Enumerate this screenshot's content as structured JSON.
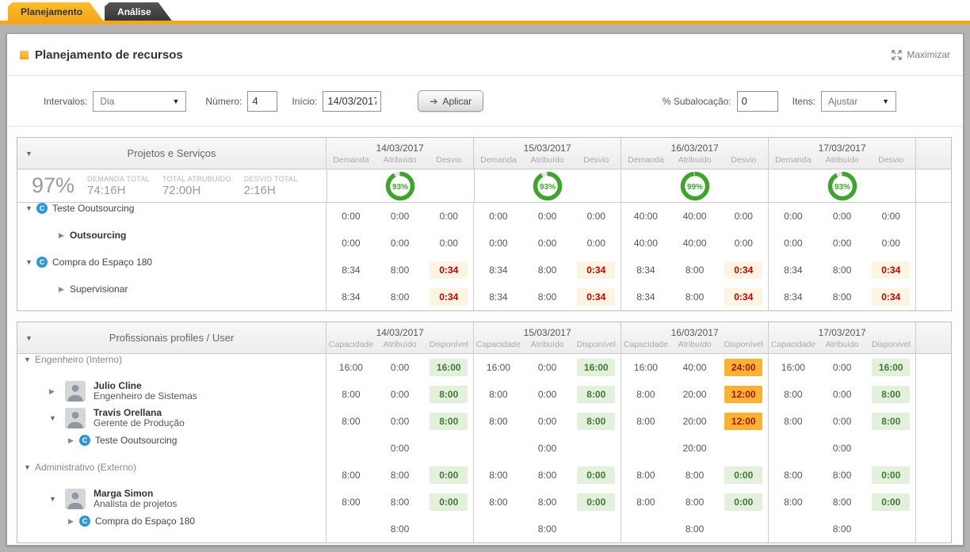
{
  "tabs": [
    {
      "label": "Planejamento",
      "active": true
    },
    {
      "label": "Análise",
      "active": false
    }
  ],
  "header": {
    "title": "Planejamento de recursos",
    "maximize_label": "Maximizar"
  },
  "filters": {
    "intervals_label": "Intervalos:",
    "intervals_value": "Dia",
    "number_label": "Número:",
    "number_value": "4",
    "start_label": "Início:",
    "start_value": "14/03/2017",
    "apply_label": "Aplicar",
    "suballocation_label": "% Subalocação:",
    "suballocation_value": "0",
    "items_label": "Itens:",
    "items_value": "Ajustar"
  },
  "icons": {
    "maximize": "expand-arrows",
    "apply_arrow": "➔",
    "expander_open": "▼",
    "expander_closed": "▶",
    "select_caret": "▼",
    "project_badge_letter": "C"
  },
  "colors": {
    "accent_orange": "#f5a71c",
    "donut_green": "#3fa32e",
    "warn_bg": "#fdf4e1",
    "warn_text": "#c00000",
    "ok_bg": "#e3f0dc",
    "ok_text": "#3f7a34",
    "over_bg": "#f9b233",
    "over_text": "#a11a1a",
    "project_icon_blue": "#2f96d3"
  },
  "dates": [
    "14/03/2017",
    "15/03/2017",
    "16/03/2017",
    "17/03/2017"
  ],
  "projects_table": {
    "title": "Projetos e Serviços",
    "subcolumns": [
      "Demanda",
      "Atribuído",
      "Desvio"
    ],
    "summary": {
      "percent": "97%",
      "stats": [
        {
          "label": "DEMANDA TOTAL",
          "value": "74:16H"
        },
        {
          "label": "TOTAL ATRUBUÍDO",
          "value": "72:00H"
        },
        {
          "label": "DESVIO TOTAL",
          "value": "2:16H"
        }
      ],
      "donuts": [
        93,
        93,
        99,
        93
      ]
    },
    "rows": [
      {
        "type": "project",
        "label": "Teste Ooutsourcing",
        "expanded": true,
        "cells": [
          [
            "0:00",
            "0:00",
            "0:00"
          ],
          [
            "0:00",
            "0:00",
            "0:00"
          ],
          [
            "40:00",
            "40:00",
            "0:00"
          ],
          [
            "0:00",
            "0:00",
            "0:00"
          ]
        ],
        "marks": [
          [
            null,
            null,
            null
          ],
          [
            null,
            null,
            null
          ],
          [
            null,
            null,
            null
          ],
          [
            null,
            null,
            null
          ]
        ]
      },
      {
        "type": "task",
        "label": "Outsourcing",
        "bold": true,
        "expanded": false,
        "cells": [
          [
            "0:00",
            "0:00",
            "0:00"
          ],
          [
            "0:00",
            "0:00",
            "0:00"
          ],
          [
            "40:00",
            "40:00",
            "0:00"
          ],
          [
            "0:00",
            "0:00",
            "0:00"
          ]
        ],
        "marks": [
          [
            null,
            null,
            null
          ],
          [
            null,
            null,
            null
          ],
          [
            null,
            null,
            null
          ],
          [
            null,
            null,
            null
          ]
        ]
      },
      {
        "type": "project",
        "label": "Compra do Espaço 180",
        "expanded": true,
        "cells": [
          [
            "8:34",
            "8:00",
            "0:34"
          ],
          [
            "8:34",
            "8:00",
            "0:34"
          ],
          [
            "8:34",
            "8:00",
            "0:34"
          ],
          [
            "8:34",
            "8:00",
            "0:34"
          ]
        ],
        "marks": [
          [
            null,
            null,
            "d"
          ],
          [
            null,
            null,
            "d"
          ],
          [
            null,
            null,
            "d"
          ],
          [
            null,
            null,
            "d"
          ]
        ]
      },
      {
        "type": "task",
        "label": "Supervisionar",
        "bold": false,
        "expanded": false,
        "cells": [
          [
            "8:34",
            "8:00",
            "0:34"
          ],
          [
            "8:34",
            "8:00",
            "0:34"
          ],
          [
            "8:34",
            "8:00",
            "0:34"
          ],
          [
            "8:34",
            "8:00",
            "0:34"
          ]
        ],
        "marks": [
          [
            null,
            null,
            "d"
          ],
          [
            null,
            null,
            "d"
          ],
          [
            null,
            null,
            "d"
          ],
          [
            null,
            null,
            "d"
          ]
        ]
      }
    ]
  },
  "professionals_table": {
    "title": "Profissionais profiles / User",
    "subcolumns": [
      "Capacidade",
      "Atribuído",
      "Disponível"
    ],
    "rows": [
      {
        "type": "group",
        "label": "Engenheiro (Interno)",
        "expanded": true,
        "cells": [
          [
            "16:00",
            "0:00",
            "16:00"
          ],
          [
            "16:00",
            "0:00",
            "16:00"
          ],
          [
            "16:00",
            "40:00",
            "24:00"
          ],
          [
            "16:00",
            "0:00",
            "16:00"
          ]
        ],
        "marks": [
          [
            null,
            null,
            "g"
          ],
          [
            null,
            null,
            "g"
          ],
          [
            null,
            null,
            "o"
          ],
          [
            null,
            null,
            "g"
          ]
        ]
      },
      {
        "type": "person",
        "name": "Julio Cline",
        "role": "Engenheiro de Sistemas",
        "expanded": false,
        "cells": [
          [
            "8:00",
            "0:00",
            "8:00"
          ],
          [
            "8:00",
            "0:00",
            "8:00"
          ],
          [
            "8:00",
            "20:00",
            "12:00"
          ],
          [
            "8:00",
            "0:00",
            "8:00"
          ]
        ],
        "marks": [
          [
            null,
            null,
            "g"
          ],
          [
            null,
            null,
            "g"
          ],
          [
            null,
            null,
            "o"
          ],
          [
            null,
            null,
            "g"
          ]
        ]
      },
      {
        "type": "person",
        "name": "Travis Orellana",
        "role": "Gerente de Produção",
        "expanded": true,
        "cells": [
          [
            "8:00",
            "0:00",
            "8:00"
          ],
          [
            "8:00",
            "0:00",
            "8:00"
          ],
          [
            "8:00",
            "20:00",
            "12:00"
          ],
          [
            "8:00",
            "0:00",
            "8:00"
          ]
        ],
        "marks": [
          [
            null,
            null,
            "g"
          ],
          [
            null,
            null,
            "g"
          ],
          [
            null,
            null,
            "o"
          ],
          [
            null,
            null,
            "g"
          ]
        ]
      },
      {
        "type": "nested-project",
        "label": "Teste Ooutsourcing",
        "expanded": false,
        "cells": [
          [
            "",
            "0:00",
            ""
          ],
          [
            "",
            "0:00",
            ""
          ],
          [
            "",
            "20:00",
            ""
          ],
          [
            "",
            "0:00",
            ""
          ]
        ],
        "marks": [
          [
            null,
            null,
            null
          ],
          [
            null,
            null,
            null
          ],
          [
            null,
            null,
            null
          ],
          [
            null,
            null,
            null
          ]
        ]
      },
      {
        "type": "group",
        "label": "Administrativo (Externo)",
        "expanded": true,
        "cells": [
          [
            "8:00",
            "8:00",
            "0:00"
          ],
          [
            "8:00",
            "8:00",
            "0:00"
          ],
          [
            "8:00",
            "8:00",
            "0:00"
          ],
          [
            "8:00",
            "8:00",
            "0:00"
          ]
        ],
        "marks": [
          [
            null,
            null,
            "g"
          ],
          [
            null,
            null,
            "g"
          ],
          [
            null,
            null,
            "g"
          ],
          [
            null,
            null,
            "g"
          ]
        ]
      },
      {
        "type": "person",
        "name": "Marga Simon",
        "role": "Analista de projetos",
        "expanded": true,
        "cells": [
          [
            "8:00",
            "8:00",
            "0:00"
          ],
          [
            "8:00",
            "8:00",
            "0:00"
          ],
          [
            "8:00",
            "8:00",
            "0:00"
          ],
          [
            "8:00",
            "8:00",
            "0:00"
          ]
        ],
        "marks": [
          [
            null,
            null,
            "g"
          ],
          [
            null,
            null,
            "g"
          ],
          [
            null,
            null,
            "g"
          ],
          [
            null,
            null,
            "g"
          ]
        ]
      },
      {
        "type": "nested-project",
        "label": "Compra do Espaço 180",
        "expanded": false,
        "cells": [
          [
            "",
            "8:00",
            ""
          ],
          [
            "",
            "8:00",
            ""
          ],
          [
            "",
            "8:00",
            ""
          ],
          [
            "",
            "8:00",
            ""
          ]
        ],
        "marks": [
          [
            null,
            null,
            null
          ],
          [
            null,
            null,
            null
          ],
          [
            null,
            null,
            null
          ],
          [
            null,
            null,
            null
          ]
        ]
      }
    ]
  }
}
